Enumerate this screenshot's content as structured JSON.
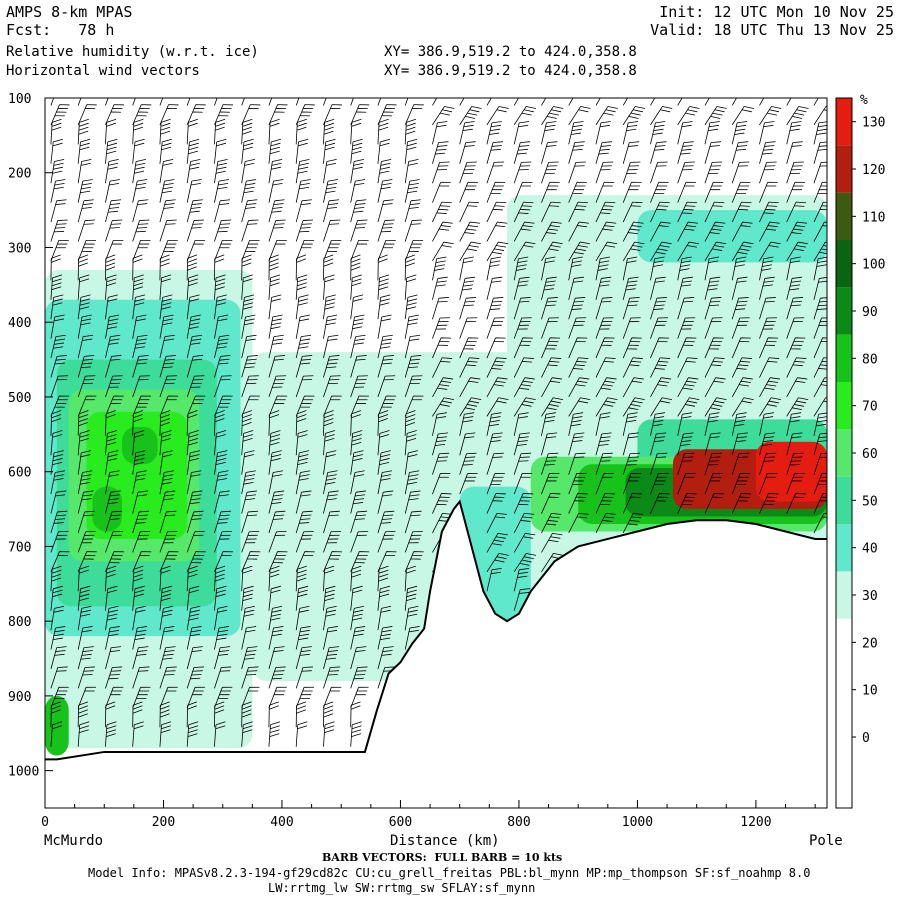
{
  "header": {
    "model": "AMPS 8-km MPAS",
    "fcst": "Fcst:   78 h",
    "field1": "Relative humidity (w.r.t. ice)",
    "field2": "Horizontal wind vectors",
    "init": "Init: 12 UTC Mon 10 Nov 25",
    "valid": "Valid: 18 UTC Thu 13 Nov 25",
    "xy1": "XY= 386.9,519.2 to 424.0,358.8",
    "xy2": "XY= 386.9,519.2 to 424.0,358.8"
  },
  "footer": {
    "barb_note": "BARB VECTORS:  FULL BARB = 10 kts",
    "model_info": "Model Info: MPASv8.2.3-194-gf29cd82c CU:cu_grell_freitas PBL:bl_mynn MP:mp_thompson SF:sf_noahmp 8.0",
    "model_info2": "LW:rrtmg_lw SW:rrtmg_sw SFLAY:sf_mynn"
  },
  "colors": {
    "c30": "#c8f7e6",
    "c40": "#5fe8cc",
    "c50": "#3ddc9a",
    "c60": "#55e86a",
    "c70": "#28ec1e",
    "c80": "#17c21b",
    "c90": "#0b8a18",
    "c100": "#0a6410",
    "c110": "#3c5a10",
    "c120": "#b21e10",
    "c130": "#e51c10",
    "c140": "#ff1a10",
    "terrain": "#000000"
  },
  "chart_data": {
    "type": "heatmap",
    "title": "Relative humidity (w.r.t. ice)",
    "subtitle": "Horizontal wind vectors",
    "xlabel": "Distance (km)",
    "ylabel": "",
    "x_start_label": "McMurdo",
    "x_end_label": "Pole",
    "xlim": [
      0,
      1320
    ],
    "ylim": [
      1050,
      100
    ],
    "x_ticks": [
      0,
      200,
      400,
      600,
      800,
      1000,
      1200
    ],
    "x_tick_labels": [
      "0",
      "200",
      "400",
      "600",
      "800",
      "1000",
      "1200"
    ],
    "y_ticks": [
      100,
      200,
      300,
      400,
      500,
      600,
      700,
      800,
      900,
      1000
    ],
    "y_tick_labels": [
      "100",
      "200",
      "300",
      "400",
      "500",
      "600",
      "700",
      "800",
      "900",
      "1000"
    ],
    "colorbar": {
      "unit": "%",
      "levels": [
        0,
        10,
        20,
        30,
        40,
        50,
        60,
        70,
        80,
        90,
        100,
        110,
        120,
        130
      ],
      "labels": [
        "0",
        "10",
        "20",
        "30",
        "40",
        "50",
        "60",
        "70",
        "80",
        "90",
        "100",
        "110",
        "120",
        "130"
      ],
      "bands": [
        {
          "from": -10,
          "to": 30,
          "color": "#ffffff"
        },
        {
          "from": 30,
          "to": 40,
          "color": "#c8f7e6"
        },
        {
          "from": 40,
          "to": 50,
          "color": "#5fe8cc"
        },
        {
          "from": 50,
          "to": 60,
          "color": "#3ddc9a"
        },
        {
          "from": 60,
          "to": 70,
          "color": "#55e86a"
        },
        {
          "from": 70,
          "to": 80,
          "color": "#28ec1e"
        },
        {
          "from": 80,
          "to": 90,
          "color": "#17c21b"
        },
        {
          "from": 90,
          "to": 100,
          "color": "#0b8a18"
        },
        {
          "from": 100,
          "to": 110,
          "color": "#0a6410"
        },
        {
          "from": 110,
          "to": 120,
          "color": "#3c5a10"
        },
        {
          "from": 120,
          "to": 130,
          "color": "#b21e10"
        },
        {
          "from": 130,
          "to": 140,
          "color": "#e51c10"
        }
      ]
    },
    "terrain": [
      [
        0,
        985
      ],
      [
        20,
        985
      ],
      [
        60,
        980
      ],
      [
        100,
        975
      ],
      [
        140,
        975
      ],
      [
        200,
        975
      ],
      [
        300,
        975
      ],
      [
        400,
        975
      ],
      [
        500,
        975
      ],
      [
        540,
        975
      ],
      [
        560,
        920
      ],
      [
        580,
        870
      ],
      [
        600,
        855
      ],
      [
        620,
        830
      ],
      [
        640,
        810
      ],
      [
        650,
        760
      ],
      [
        660,
        720
      ],
      [
        670,
        680
      ],
      [
        690,
        650
      ],
      [
        700,
        640
      ],
      [
        720,
        700
      ],
      [
        740,
        760
      ],
      [
        760,
        790
      ],
      [
        780,
        800
      ],
      [
        800,
        790
      ],
      [
        820,
        760
      ],
      [
        860,
        720
      ],
      [
        900,
        700
      ],
      [
        950,
        690
      ],
      [
        1000,
        680
      ],
      [
        1050,
        670
      ],
      [
        1100,
        665
      ],
      [
        1150,
        665
      ],
      [
        1200,
        670
      ],
      [
        1250,
        680
      ],
      [
        1300,
        690
      ],
      [
        1320,
        690
      ]
    ],
    "rh_regions": [
      {
        "level": 30,
        "x0": 0,
        "x1": 350,
        "p0": 330,
        "p1": 970
      },
      {
        "level": 30,
        "x0": 350,
        "x1": 1320,
        "p0": 440,
        "p1": 880
      },
      {
        "level": 30,
        "x0": 780,
        "x1": 1320,
        "p0": 230,
        "p1": 700
      },
      {
        "level": 40,
        "x0": 0,
        "x1": 330,
        "p0": 370,
        "p1": 820
      },
      {
        "level": 40,
        "x0": 1000,
        "x1": 1320,
        "p0": 250,
        "p1": 320
      },
      {
        "level": 40,
        "x0": 700,
        "x1": 820,
        "p0": 620,
        "p1": 820
      },
      {
        "level": 50,
        "x0": 20,
        "x1": 290,
        "p0": 450,
        "p1": 780
      },
      {
        "level": 60,
        "x0": 40,
        "x1": 260,
        "p0": 490,
        "p1": 720
      },
      {
        "level": 70,
        "x0": 70,
        "x1": 240,
        "p0": 520,
        "p1": 690
      },
      {
        "level": 80,
        "x0": 130,
        "x1": 190,
        "p0": 540,
        "p1": 590
      },
      {
        "level": 80,
        "x0": 80,
        "x1": 130,
        "p0": 620,
        "p1": 680
      },
      {
        "level": 80,
        "x0": 0,
        "x1": 40,
        "p0": 900,
        "p1": 980
      },
      {
        "level": 50,
        "x0": 1000,
        "x1": 1320,
        "p0": 530,
        "p1": 680
      },
      {
        "level": 60,
        "x0": 820,
        "x1": 1320,
        "p0": 580,
        "p1": 680
      },
      {
        "level": 80,
        "x0": 900,
        "x1": 1320,
        "p0": 590,
        "p1": 670
      },
      {
        "level": 90,
        "x0": 980,
        "x1": 1320,
        "p0": 595,
        "p1": 660
      },
      {
        "level": 120,
        "x0": 1060,
        "x1": 1320,
        "p0": 570,
        "p1": 650
      },
      {
        "level": 130,
        "x0": 1200,
        "x1": 1320,
        "p0": 560,
        "p1": 640
      }
    ]
  }
}
